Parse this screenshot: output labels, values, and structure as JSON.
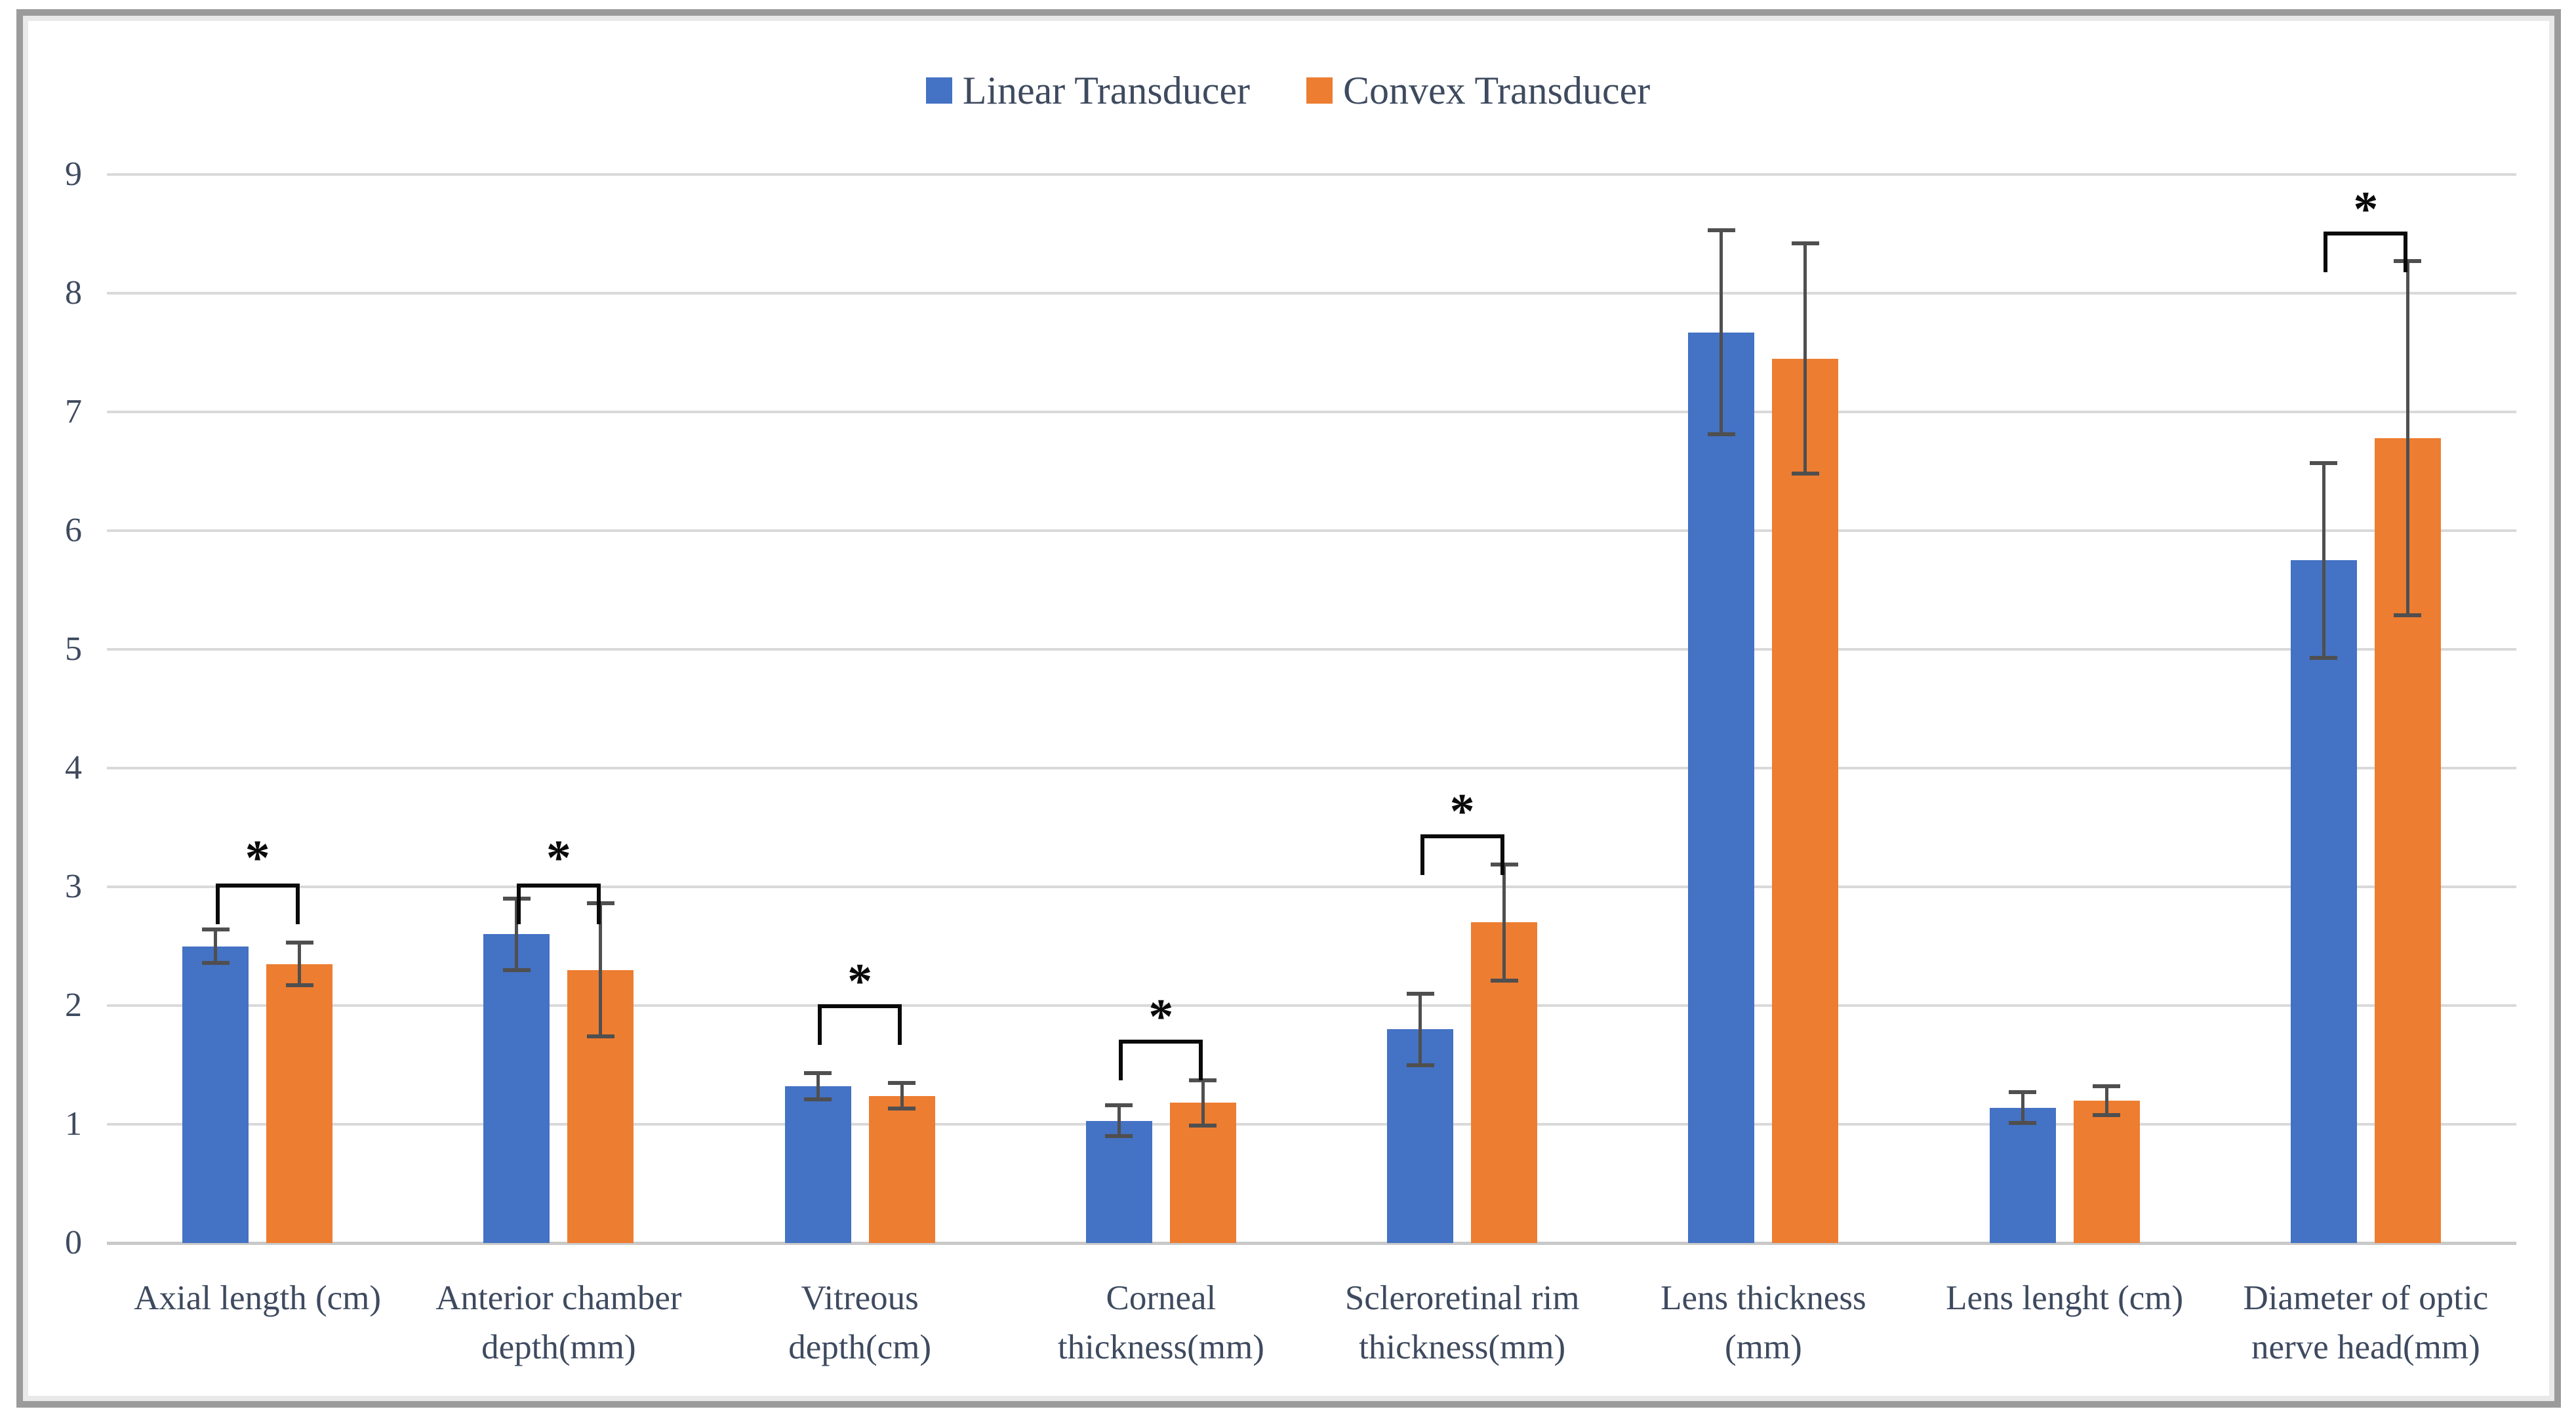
{
  "figure": {
    "kind": "framed scientific figure, grouped bar chart with error bars and significance brackets",
    "frame_color": "#9b9b9b",
    "frame_inner_color": "#e9e9e9",
    "background": "#ffffff",
    "grid_color": "#d9d9d9",
    "axis_line_color": "#c9c9c9",
    "error_bar_color": "#4f4f4f",
    "bracket_color": "#0a0a0a",
    "text_color": "#3e4a5f"
  },
  "chart_data": {
    "type": "bar",
    "title": "",
    "xlabel": "",
    "ylabel": "",
    "ylim": [
      0,
      9
    ],
    "yticks": [
      "0",
      "1",
      "2",
      "3",
      "4",
      "5",
      "6",
      "7",
      "8",
      "9"
    ],
    "grid": true,
    "legend_position": "top-center",
    "categories": [
      "Axial length (cm)",
      "Anterior chamber\ndepth(mm)",
      "Vitreous\ndepth(cm)",
      "Corneal\nthickness(mm)",
      "Scleroretinal rim\nthickness(mm)",
      "Lens thickness\n(mm)",
      "Lens lenght (cm)",
      "Diameter of optic\nnerve head(mm)"
    ],
    "series": [
      {
        "name": "Linear Transducer",
        "color": "#4472C4",
        "values": [
          2.5,
          2.6,
          1.32,
          1.03,
          1.8,
          7.67,
          1.14,
          5.75
        ],
        "errors": [
          0.14,
          0.3,
          0.11,
          0.13,
          0.3,
          0.86,
          0.13,
          0.82
        ]
      },
      {
        "name": "Convex Transducer",
        "color": "#ED7D31",
        "values": [
          2.35,
          2.3,
          1.24,
          1.18,
          2.7,
          7.45,
          1.2,
          6.78
        ],
        "errors": [
          0.18,
          0.56,
          0.11,
          0.19,
          0.49,
          0.97,
          0.12,
          1.49
        ]
      }
    ],
    "significance": [
      {
        "group": 0,
        "symbol": "*",
        "bracket_y": 3.03,
        "asterisk_y": 3.3
      },
      {
        "group": 1,
        "symbol": "*",
        "bracket_y": 3.03,
        "asterisk_y": 3.3
      },
      {
        "group": 2,
        "symbol": "*",
        "bracket_y": 2.01,
        "asterisk_y": 2.26
      },
      {
        "group": 3,
        "symbol": "*",
        "bracket_y": 1.71,
        "asterisk_y": 1.96
      },
      {
        "group": 4,
        "symbol": "*",
        "bracket_y": 3.44,
        "asterisk_y": 3.69
      },
      {
        "group": 7,
        "symbol": "*",
        "bracket_y": 8.52,
        "asterisk_y": 8.76
      }
    ]
  },
  "layout_note": "y baseline at 1895px, 181px per unit, plot x 163-3837px"
}
